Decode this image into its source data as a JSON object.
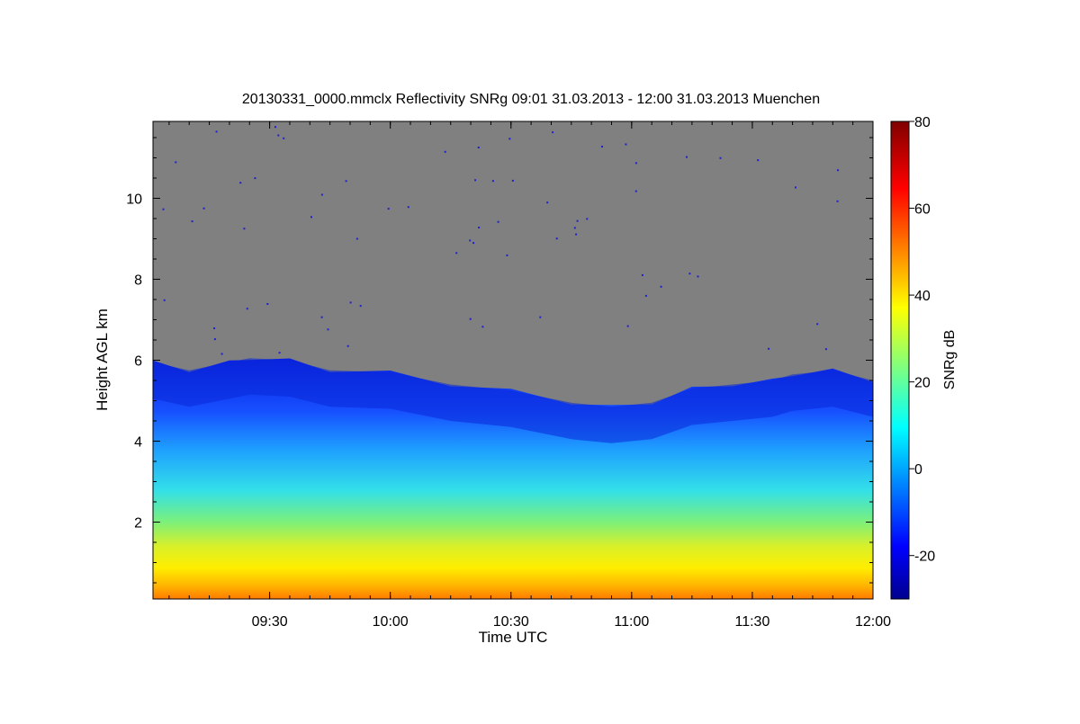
{
  "chart_data": {
    "type": "heatmap",
    "title": "20130331_0000.mmclx Reflectivity SNRg   09:01 31.03.2013 - 12:00 31.03.2013 Muenchen",
    "xlabel": "Time UTC",
    "ylabel": "Height AGL km",
    "x_ticks": [
      "09:30",
      "10:00",
      "10:30",
      "11:00",
      "11:30",
      "12:00"
    ],
    "y_ticks": [
      2,
      4,
      6,
      8,
      10
    ],
    "xlim": [
      "09:01",
      "12:00"
    ],
    "ylim": [
      0.1,
      11.9
    ],
    "colorbar": {
      "label": "SNRg dB",
      "ticks": [
        -20,
        0,
        20,
        40,
        60,
        80
      ],
      "range": [
        -30,
        80
      ],
      "colormap": "jet"
    },
    "background_color": "#808080",
    "echo_top_km": [
      {
        "time": "09:01",
        "height": 5.95
      },
      {
        "time": "09:10",
        "height": 5.75
      },
      {
        "time": "09:20",
        "height": 5.95
      },
      {
        "time": "09:25",
        "height": 6.05
      },
      {
        "time": "09:35",
        "height": 6.0
      },
      {
        "time": "09:45",
        "height": 5.75
      },
      {
        "time": "10:00",
        "height": 5.7
      },
      {
        "time": "10:15",
        "height": 5.4
      },
      {
        "time": "10:30",
        "height": 5.25
      },
      {
        "time": "10:45",
        "height": 4.95
      },
      {
        "time": "10:55",
        "height": 4.85
      },
      {
        "time": "11:05",
        "height": 4.95
      },
      {
        "time": "11:15",
        "height": 5.3
      },
      {
        "time": "11:25",
        "height": 5.4
      },
      {
        "time": "11:35",
        "height": 5.5
      },
      {
        "time": "11:40",
        "height": 5.65
      },
      {
        "time": "11:50",
        "height": 5.75
      },
      {
        "time": "12:00",
        "height": 5.5
      }
    ],
    "dry_region": {
      "color": "#808080",
      "description_values": "no signal above echo top"
    }
  }
}
